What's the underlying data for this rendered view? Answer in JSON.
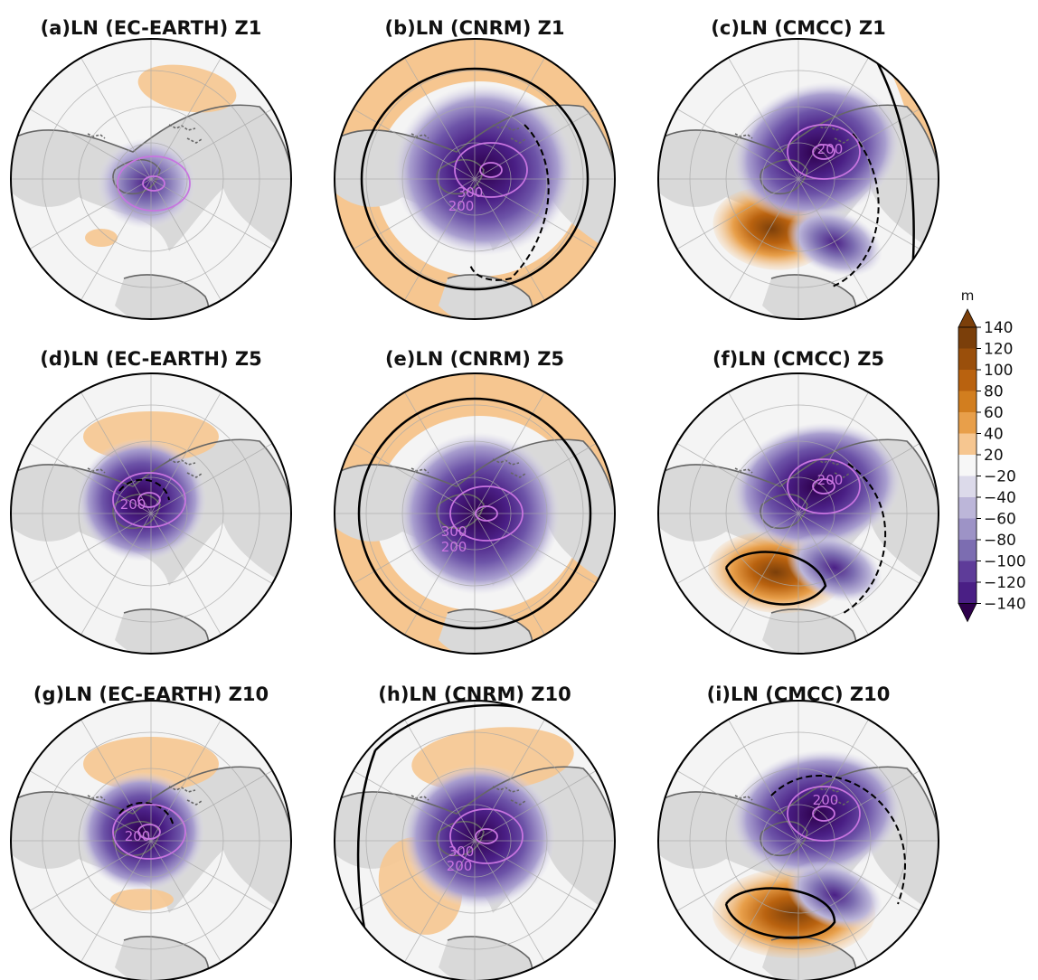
{
  "figure": {
    "panels": [
      {
        "id": "a",
        "title": "(a)LN (EC-EARTH) Z1",
        "contour_labels": []
      },
      {
        "id": "b",
        "title": "(b)LN (CNRM) Z1",
        "contour_labels": [
          "300",
          "200"
        ]
      },
      {
        "id": "c",
        "title": "(c)LN (CMCC) Z1",
        "contour_labels": [
          "200"
        ]
      },
      {
        "id": "d",
        "title": "(d)LN (EC-EARTH) Z5",
        "contour_labels": [
          "200"
        ]
      },
      {
        "id": "e",
        "title": "(e)LN (CNRM) Z5",
        "contour_labels": [
          "300",
          "200"
        ]
      },
      {
        "id": "f",
        "title": "(f)LN (CMCC) Z5",
        "contour_labels": [
          "200"
        ]
      },
      {
        "id": "g",
        "title": "(g)LN (EC-EARTH) Z10",
        "contour_labels": [
          "200"
        ]
      },
      {
        "id": "h",
        "title": "(h)LN (CNRM) Z10",
        "contour_labels": [
          "300",
          "200"
        ]
      },
      {
        "id": "i",
        "title": "(i)LN (CMCC) Z10",
        "contour_labels": [
          "200"
        ]
      }
    ],
    "colorbar": {
      "unit": "m",
      "ticks": [
        "140",
        "120",
        "100",
        "80",
        "60",
        "40",
        "20",
        "−20",
        "−40",
        "−60",
        "−80",
        "−100",
        "−120",
        "−140"
      ],
      "colors": [
        "#7b3f0a",
        "#9a4f0b",
        "#b9620f",
        "#d27e1f",
        "#e89f4a",
        "#f6c690",
        "#f7f7f7",
        "#dcdaea",
        "#bcb6d9",
        "#9d93c6",
        "#7c6db1",
        "#5e3c99",
        "#4a1f85",
        "#2d004b"
      ]
    },
    "colors": {
      "land": "#d9d9d9",
      "ocean": "#f4f4f4",
      "coast": "#666666",
      "contour_label": "#c874e0",
      "positive_contour": "#000000"
    }
  }
}
